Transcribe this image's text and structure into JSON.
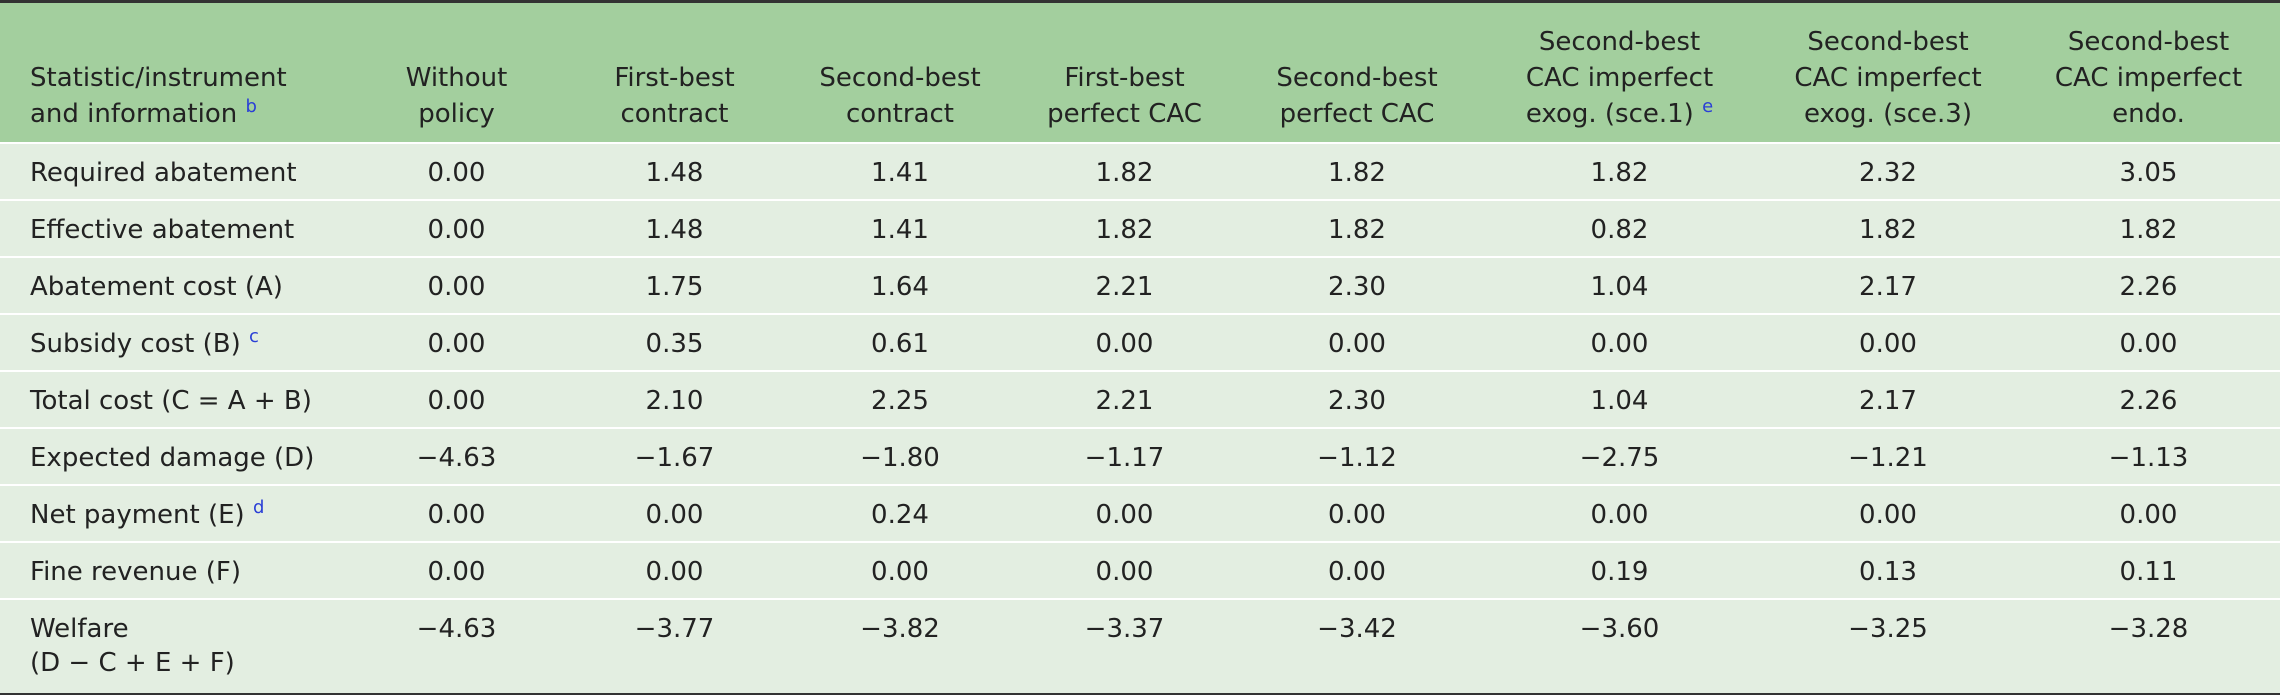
{
  "table": {
    "columns": [
      {
        "lines": [
          "Statistic/instrument",
          "and information"
        ],
        "note": "b"
      },
      {
        "lines": [
          "Without",
          "policy"
        ]
      },
      {
        "lines": [
          "First-best",
          "contract"
        ]
      },
      {
        "lines": [
          "Second-best",
          "contract"
        ]
      },
      {
        "lines": [
          "First-best",
          "perfect CAC"
        ]
      },
      {
        "lines": [
          "Second-best",
          "perfect CAC"
        ]
      },
      {
        "lines": [
          "Second-best",
          "CAC imperfect",
          "exog. (sce.1)"
        ],
        "note": "e"
      },
      {
        "lines": [
          "Second-best",
          "CAC imperfect",
          "exog. (sce.3)"
        ]
      },
      {
        "lines": [
          "Second-best",
          "CAC imperfect",
          "endo."
        ]
      }
    ],
    "rows": [
      {
        "label": [
          "Required abatement"
        ],
        "values": [
          "0.00",
          "1.48",
          "1.41",
          "1.82",
          "1.82",
          "1.82",
          "2.32",
          "3.05"
        ]
      },
      {
        "label": [
          "Effective abatement"
        ],
        "values": [
          "0.00",
          "1.48",
          "1.41",
          "1.82",
          "1.82",
          "0.82",
          "1.82",
          "1.82"
        ]
      },
      {
        "label": [
          "Abatement cost (A)"
        ],
        "values": [
          "0.00",
          "1.75",
          "1.64",
          "2.21",
          "2.30",
          "1.04",
          "2.17",
          "2.26"
        ]
      },
      {
        "label": [
          "Subsidy cost (B)"
        ],
        "note": "c",
        "values": [
          "0.00",
          "0.35",
          "0.61",
          "0.00",
          "0.00",
          "0.00",
          "0.00",
          "0.00"
        ]
      },
      {
        "label": [
          "Total cost (C = A + B)"
        ],
        "values": [
          "0.00",
          "2.10",
          "2.25",
          "2.21",
          "2.30",
          "1.04",
          "2.17",
          "2.26"
        ]
      },
      {
        "label": [
          "Expected damage (D)"
        ],
        "values": [
          "−4.63",
          "−1.67",
          "−1.80",
          "−1.17",
          "−1.12",
          "−2.75",
          "−1.21",
          "−1.13"
        ]
      },
      {
        "label": [
          "Net payment (E)"
        ],
        "note": "d",
        "values": [
          "0.00",
          "0.00",
          "0.24",
          "0.00",
          "0.00",
          "0.00",
          "0.00",
          "0.00"
        ]
      },
      {
        "label": [
          "Fine revenue (F)"
        ],
        "values": [
          "0.00",
          "0.00",
          "0.00",
          "0.00",
          "0.00",
          "0.19",
          "0.13",
          "0.11"
        ]
      },
      {
        "label": [
          "Welfare",
          "(D − C + E + F)"
        ],
        "values": [
          "−4.63",
          "−3.77",
          "−3.82",
          "−3.37",
          "−3.42",
          "−3.60",
          "−3.25",
          "−3.28"
        ]
      }
    ]
  }
}
